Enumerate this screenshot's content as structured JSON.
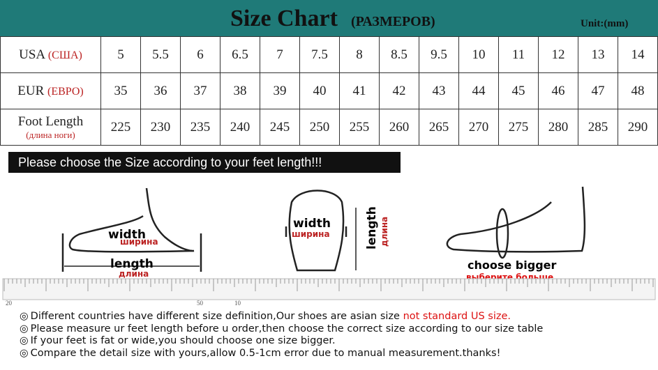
{
  "header": {
    "title": "Size Chart",
    "subtitle": "(РАЗМЕРОВ)",
    "unit": "Unit:(mm)"
  },
  "table": {
    "rows": [
      {
        "label": "USA",
        "label_ru": "(США)",
        "values": [
          5,
          5.5,
          6,
          6.5,
          7,
          7.5,
          8,
          8.5,
          9.5,
          10,
          11,
          12,
          13,
          14
        ]
      },
      {
        "label": "EUR",
        "label_ru": "(ЕВРО)",
        "values": [
          35,
          36,
          37,
          38,
          39,
          40,
          41,
          42,
          43,
          44,
          45,
          46,
          47,
          48
        ]
      },
      {
        "label": "Foot Length",
        "label_ru": "(длина ноги)",
        "values": [
          225,
          230,
          235,
          240,
          245,
          250,
          255,
          260,
          265,
          270,
          275,
          280,
          285,
          290
        ]
      }
    ]
  },
  "banner": "Please choose the Size according to your feet length!!!",
  "figures": [
    {
      "en": "width",
      "ru": "ширина",
      "en2": "length",
      "ru2": "длина"
    },
    {
      "en": "width",
      "ru": "ширина",
      "en2": "length",
      "ru2": "длина"
    },
    {
      "en": "choose bigger",
      "ru": "выберите больше"
    }
  ],
  "ruler": [
    "20",
    "50",
    "10"
  ],
  "notes": [
    [
      "Different countries have different size definition,Our shoes are asian size ",
      "not standard US size."
    ],
    [
      "Please measure ur feet length before u order,then choose the correct size according to our size table"
    ],
    [
      "If your feet is fat or wide,you should choose one size bigger."
    ],
    [
      "Compare the detail size with yours,allow 0.5-1cm error due to manual measurement.thanks!"
    ]
  ]
}
